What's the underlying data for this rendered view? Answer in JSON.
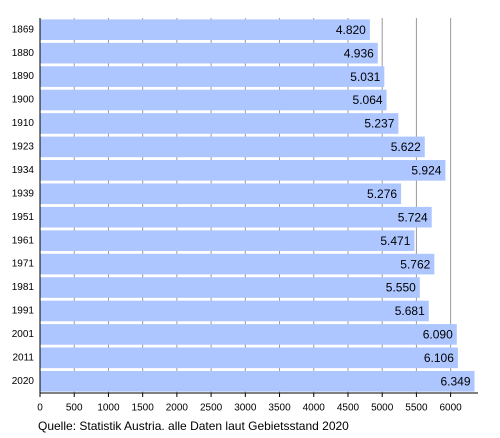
{
  "chart_data": {
    "type": "hbar",
    "categories": [
      "1869",
      "1880",
      "1890",
      "1900",
      "1910",
      "1923",
      "1934",
      "1939",
      "1951",
      "1961",
      "1971",
      "1981",
      "1991",
      "2001",
      "2011",
      "2020"
    ],
    "values": [
      4820,
      4936,
      5031,
      5064,
      5237,
      5622,
      5924,
      5276,
      5724,
      5471,
      5762,
      5550,
      5681,
      6090,
      6106,
      6349
    ],
    "value_labels": [
      "4.820",
      "4.936",
      "5.031",
      "5.064",
      "5.237",
      "5.622",
      "5.924",
      "5.276",
      "5.724",
      "5.471",
      "5.762",
      "5.550",
      "5.681",
      "6.090",
      "6.106",
      "6.349"
    ],
    "color": "#adc6ff",
    "xlim": [
      0,
      6400
    ],
    "xticks": [
      0,
      500,
      1000,
      1500,
      2000,
      2500,
      3000,
      3500,
      4000,
      4500,
      5000,
      5500,
      6000
    ],
    "grid": true,
    "source": "Quelle: Statistik Austria. alle Daten laut Gebietsstand 2020"
  }
}
